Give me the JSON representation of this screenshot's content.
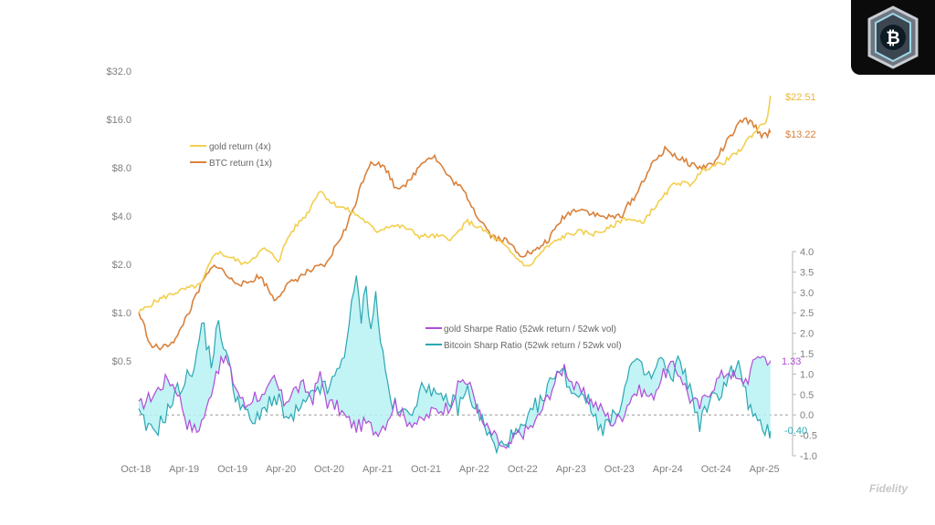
{
  "watermark": "Fidelity",
  "badge": {
    "icon": "bitcoin-logo-icon"
  },
  "colors": {
    "gold_return": "#F2CF4E",
    "btc_return": "#D9813B",
    "gold_sharpe": "#B04CD6",
    "btc_sharpe": "#2BA7B2",
    "fill": "#B7F1F3",
    "zero_line": "#9a9a9a",
    "axis_text": "#7f7f7f",
    "badge_bg": "#0b0b0b"
  },
  "chart_data": [
    {
      "type": "line",
      "y_scale": "log2",
      "ylim": [
        0.5,
        32
      ],
      "y_ticks": [
        "$32.0",
        "$16.0",
        "$8.0",
        "$4.0",
        "$2.0",
        "$1.0",
        "$0.5"
      ],
      "x_ticks": [
        "Oct-18",
        "Apr-19",
        "Oct-19",
        "Apr-20",
        "Oct-20",
        "Apr-21",
        "Oct-21",
        "Apr-22",
        "Oct-22",
        "Apr-23",
        "Oct-23",
        "Apr-24",
        "Oct-24",
        "Apr-25"
      ],
      "legend_position": "upper-left",
      "series": [
        {
          "name": "gold return (4x)",
          "end_label": "$22.51",
          "points": [
            [
              2018.8,
              1.0
            ],
            [
              2019.0,
              1.2
            ],
            [
              2019.2,
              1.35
            ],
            [
              2019.45,
              1.5
            ],
            [
              2019.6,
              2.4
            ],
            [
              2019.75,
              2.2
            ],
            [
              2019.9,
              2.0
            ],
            [
              2020.1,
              2.5
            ],
            [
              2020.25,
              2.1
            ],
            [
              2020.35,
              3.0
            ],
            [
              2020.55,
              4.2
            ],
            [
              2020.67,
              5.8
            ],
            [
              2020.8,
              4.8
            ],
            [
              2020.95,
              4.4
            ],
            [
              2021.1,
              3.9
            ],
            [
              2021.25,
              3.2
            ],
            [
              2021.4,
              3.5
            ],
            [
              2021.55,
              3.4
            ],
            [
              2021.7,
              3.0
            ],
            [
              2021.85,
              3.0
            ],
            [
              2022.05,
              2.9
            ],
            [
              2022.2,
              3.7
            ],
            [
              2022.35,
              3.3
            ],
            [
              2022.55,
              2.7
            ],
            [
              2022.7,
              2.2
            ],
            [
              2022.83,
              1.9
            ],
            [
              2023.0,
              2.5
            ],
            [
              2023.2,
              3.0
            ],
            [
              2023.35,
              3.2
            ],
            [
              2023.5,
              3.1
            ],
            [
              2023.65,
              3.3
            ],
            [
              2023.83,
              3.9
            ],
            [
              2024.0,
              3.6
            ],
            [
              2024.2,
              5.0
            ],
            [
              2024.35,
              6.5
            ],
            [
              2024.5,
              6.3
            ],
            [
              2024.67,
              8.0
            ],
            [
              2024.83,
              8.5
            ],
            [
              2025.0,
              10.0
            ],
            [
              2025.15,
              13.0
            ],
            [
              2025.3,
              16.0
            ],
            [
              2025.33,
              22.51
            ]
          ]
        },
        {
          "name": "BTC return (1x)",
          "end_label": "$13.22",
          "points": [
            [
              2018.8,
              1.0
            ],
            [
              2018.92,
              0.62
            ],
            [
              2019.05,
              0.6
            ],
            [
              2019.2,
              0.7
            ],
            [
              2019.35,
              1.1
            ],
            [
              2019.5,
              1.7
            ],
            [
              2019.6,
              2.0
            ],
            [
              2019.75,
              1.6
            ],
            [
              2019.9,
              1.5
            ],
            [
              2020.05,
              1.7
            ],
            [
              2020.2,
              1.2
            ],
            [
              2020.35,
              1.5
            ],
            [
              2020.55,
              1.8
            ],
            [
              2020.75,
              2.0
            ],
            [
              2020.95,
              3.4
            ],
            [
              2021.05,
              5.0
            ],
            [
              2021.2,
              8.8
            ],
            [
              2021.35,
              8.0
            ],
            [
              2021.45,
              6.0
            ],
            [
              2021.6,
              6.5
            ],
            [
              2021.75,
              9.0
            ],
            [
              2021.85,
              9.5
            ],
            [
              2022.0,
              7.0
            ],
            [
              2022.15,
              5.8
            ],
            [
              2022.3,
              4.0
            ],
            [
              2022.45,
              3.0
            ],
            [
              2022.6,
              2.8
            ],
            [
              2022.75,
              2.3
            ],
            [
              2022.9,
              2.4
            ],
            [
              2023.05,
              2.9
            ],
            [
              2023.2,
              4.0
            ],
            [
              2023.35,
              4.5
            ],
            [
              2023.55,
              4.0
            ],
            [
              2023.7,
              3.9
            ],
            [
              2023.8,
              4.1
            ],
            [
              2023.95,
              5.5
            ],
            [
              2024.1,
              8.2
            ],
            [
              2024.25,
              10.5
            ],
            [
              2024.4,
              9.0
            ],
            [
              2024.6,
              8.0
            ],
            [
              2024.75,
              8.5
            ],
            [
              2024.9,
              12.0
            ],
            [
              2025.05,
              16.0
            ],
            [
              2025.15,
              15.0
            ],
            [
              2025.25,
              12.5
            ],
            [
              2025.33,
              13.22
            ]
          ]
        }
      ]
    },
    {
      "type": "area",
      "ylim": [
        -1.0,
        4.0
      ],
      "y_ticks": [
        "4.0",
        "3.5",
        "3.0",
        "2.5",
        "2.0",
        "1.5",
        "1.0",
        "0.5",
        "0.0",
        "-0.5",
        "-1.0"
      ],
      "legend_position": "center",
      "series": [
        {
          "name": "gold Sharpe Ratio (52wk return / 52wk vol)",
          "end_label": "1.33",
          "points": [
            [
              2018.8,
              0.2
            ],
            [
              2018.95,
              0.5
            ],
            [
              2019.1,
              0.9
            ],
            [
              2019.2,
              0.6
            ],
            [
              2019.3,
              -0.2
            ],
            [
              2019.4,
              -0.4
            ],
            [
              2019.5,
              0.1
            ],
            [
              2019.6,
              1.1
            ],
            [
              2019.7,
              1.4
            ],
            [
              2019.78,
              0.8
            ],
            [
              2019.9,
              0.2
            ],
            [
              2020.0,
              0.5
            ],
            [
              2020.1,
              0.4
            ],
            [
              2020.2,
              0.9
            ],
            [
              2020.3,
              0.3
            ],
            [
              2020.4,
              0.6
            ],
            [
              2020.5,
              0.7
            ],
            [
              2020.6,
              0.4
            ],
            [
              2020.67,
              1.0
            ],
            [
              2020.75,
              0.3
            ],
            [
              2020.85,
              0.2
            ],
            [
              2020.95,
              -0.1
            ],
            [
              2021.05,
              -0.3
            ],
            [
              2021.15,
              -0.2
            ],
            [
              2021.25,
              -0.4
            ],
            [
              2021.35,
              -0.2
            ],
            [
              2021.45,
              0.3
            ],
            [
              2021.55,
              -0.1
            ],
            [
              2021.7,
              -0.2
            ],
            [
              2021.85,
              0.1
            ],
            [
              2022.0,
              0.2
            ],
            [
              2022.15,
              0.9
            ],
            [
              2022.25,
              0.6
            ],
            [
              2022.35,
              -0.2
            ],
            [
              2022.5,
              -0.6
            ],
            [
              2022.6,
              -0.9
            ],
            [
              2022.7,
              -0.5
            ],
            [
              2022.8,
              -0.4
            ],
            [
              2022.9,
              -0.2
            ],
            [
              2023.0,
              0.3
            ],
            [
              2023.1,
              0.8
            ],
            [
              2023.2,
              1.2
            ],
            [
              2023.3,
              0.7
            ],
            [
              2023.4,
              0.5
            ],
            [
              2023.5,
              0.3
            ],
            [
              2023.6,
              0.1
            ],
            [
              2023.7,
              -0.2
            ],
            [
              2023.8,
              0.0
            ],
            [
              2023.9,
              0.5
            ],
            [
              2024.0,
              0.6
            ],
            [
              2024.1,
              0.4
            ],
            [
              2024.2,
              0.9
            ],
            [
              2024.3,
              1.2
            ],
            [
              2024.4,
              1.0
            ],
            [
              2024.5,
              0.4
            ],
            [
              2024.6,
              0.2
            ],
            [
              2024.7,
              0.6
            ],
            [
              2024.8,
              0.9
            ],
            [
              2024.9,
              1.1
            ],
            [
              2025.0,
              0.8
            ],
            [
              2025.1,
              0.9
            ],
            [
              2025.2,
              1.5
            ],
            [
              2025.33,
              1.33
            ]
          ]
        },
        {
          "name": "Bitcoin Sharp Ratio (52wk return / 52wk vol)",
          "end_label": "-0.40",
          "points": [
            [
              2018.8,
              0.0
            ],
            [
              2018.9,
              -0.4
            ],
            [
              2019.0,
              -0.3
            ],
            [
              2019.1,
              0.1
            ],
            [
              2019.2,
              0.6
            ],
            [
              2019.3,
              0.9
            ],
            [
              2019.4,
              1.4
            ],
            [
              2019.45,
              2.3
            ],
            [
              2019.55,
              1.3
            ],
            [
              2019.62,
              2.2
            ],
            [
              2019.7,
              1.6
            ],
            [
              2019.78,
              0.6
            ],
            [
              2019.88,
              0.2
            ],
            [
              2019.95,
              -0.2
            ],
            [
              2020.05,
              -0.1
            ],
            [
              2020.15,
              0.4
            ],
            [
              2020.25,
              0.3
            ],
            [
              2020.35,
              -0.2
            ],
            [
              2020.45,
              0.1
            ],
            [
              2020.55,
              0.3
            ],
            [
              2020.65,
              0.7
            ],
            [
              2020.75,
              0.6
            ],
            [
              2020.85,
              1.0
            ],
            [
              2020.92,
              1.5
            ],
            [
              2021.0,
              2.6
            ],
            [
              2021.05,
              3.3
            ],
            [
              2021.1,
              2.4
            ],
            [
              2021.15,
              3.1
            ],
            [
              2021.2,
              2.2
            ],
            [
              2021.25,
              2.9
            ],
            [
              2021.32,
              1.5
            ],
            [
              2021.4,
              0.4
            ],
            [
              2021.5,
              0.0
            ],
            [
              2021.6,
              0.1
            ],
            [
              2021.7,
              0.5
            ],
            [
              2021.8,
              0.8
            ],
            [
              2021.9,
              0.3
            ],
            [
              2022.0,
              0.4
            ],
            [
              2022.1,
              0.2
            ],
            [
              2022.2,
              0.6
            ],
            [
              2022.3,
              0.1
            ],
            [
              2022.4,
              -0.4
            ],
            [
              2022.5,
              -0.9
            ],
            [
              2022.6,
              -0.6
            ],
            [
              2022.7,
              -0.5
            ],
            [
              2022.8,
              -0.3
            ],
            [
              2022.9,
              0.2
            ],
            [
              2023.0,
              0.4
            ],
            [
              2023.1,
              1.1
            ],
            [
              2023.2,
              1.0
            ],
            [
              2023.3,
              0.5
            ],
            [
              2023.4,
              0.6
            ],
            [
              2023.5,
              0.0
            ],
            [
              2023.6,
              -0.3
            ],
            [
              2023.7,
              -0.1
            ],
            [
              2023.8,
              0.4
            ],
            [
              2023.9,
              1.3
            ],
            [
              2024.0,
              1.1
            ],
            [
              2024.1,
              0.9
            ],
            [
              2024.2,
              1.4
            ],
            [
              2024.3,
              0.8
            ],
            [
              2024.4,
              1.4
            ],
            [
              2024.5,
              0.6
            ],
            [
              2024.6,
              -0.2
            ],
            [
              2024.7,
              0.3
            ],
            [
              2024.8,
              0.5
            ],
            [
              2024.9,
              1.0
            ],
            [
              2025.0,
              1.2
            ],
            [
              2025.1,
              0.3
            ],
            [
              2025.2,
              -0.3
            ],
            [
              2025.33,
              -0.4
            ]
          ]
        }
      ]
    }
  ]
}
